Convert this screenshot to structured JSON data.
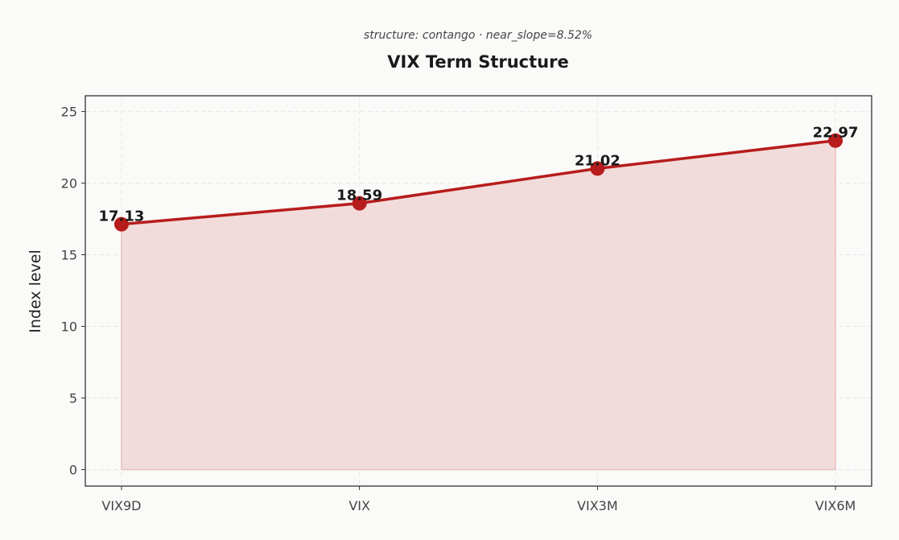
{
  "chart_data": {
    "type": "line",
    "title": "VIX Term Structure",
    "subtitle": "structure: contango · near_slope=8.52%",
    "xlabel": "",
    "ylabel": "Index level",
    "categories": [
      "VIX9D",
      "VIX",
      "VIX3M",
      "VIX6M"
    ],
    "values": [
      17.13,
      18.59,
      21.02,
      22.97
    ],
    "data_labels": [
      "17.13",
      "18.59",
      "21.02",
      "22.97"
    ],
    "yticks": [
      0,
      5,
      10,
      15,
      20,
      25
    ],
    "ylim": [
      -1.15,
      26.1
    ],
    "grid": true,
    "area_fill": true,
    "colors": {
      "line": "#b71c1c",
      "fill": "#f2dcdb",
      "background": "#fafaf8"
    }
  }
}
